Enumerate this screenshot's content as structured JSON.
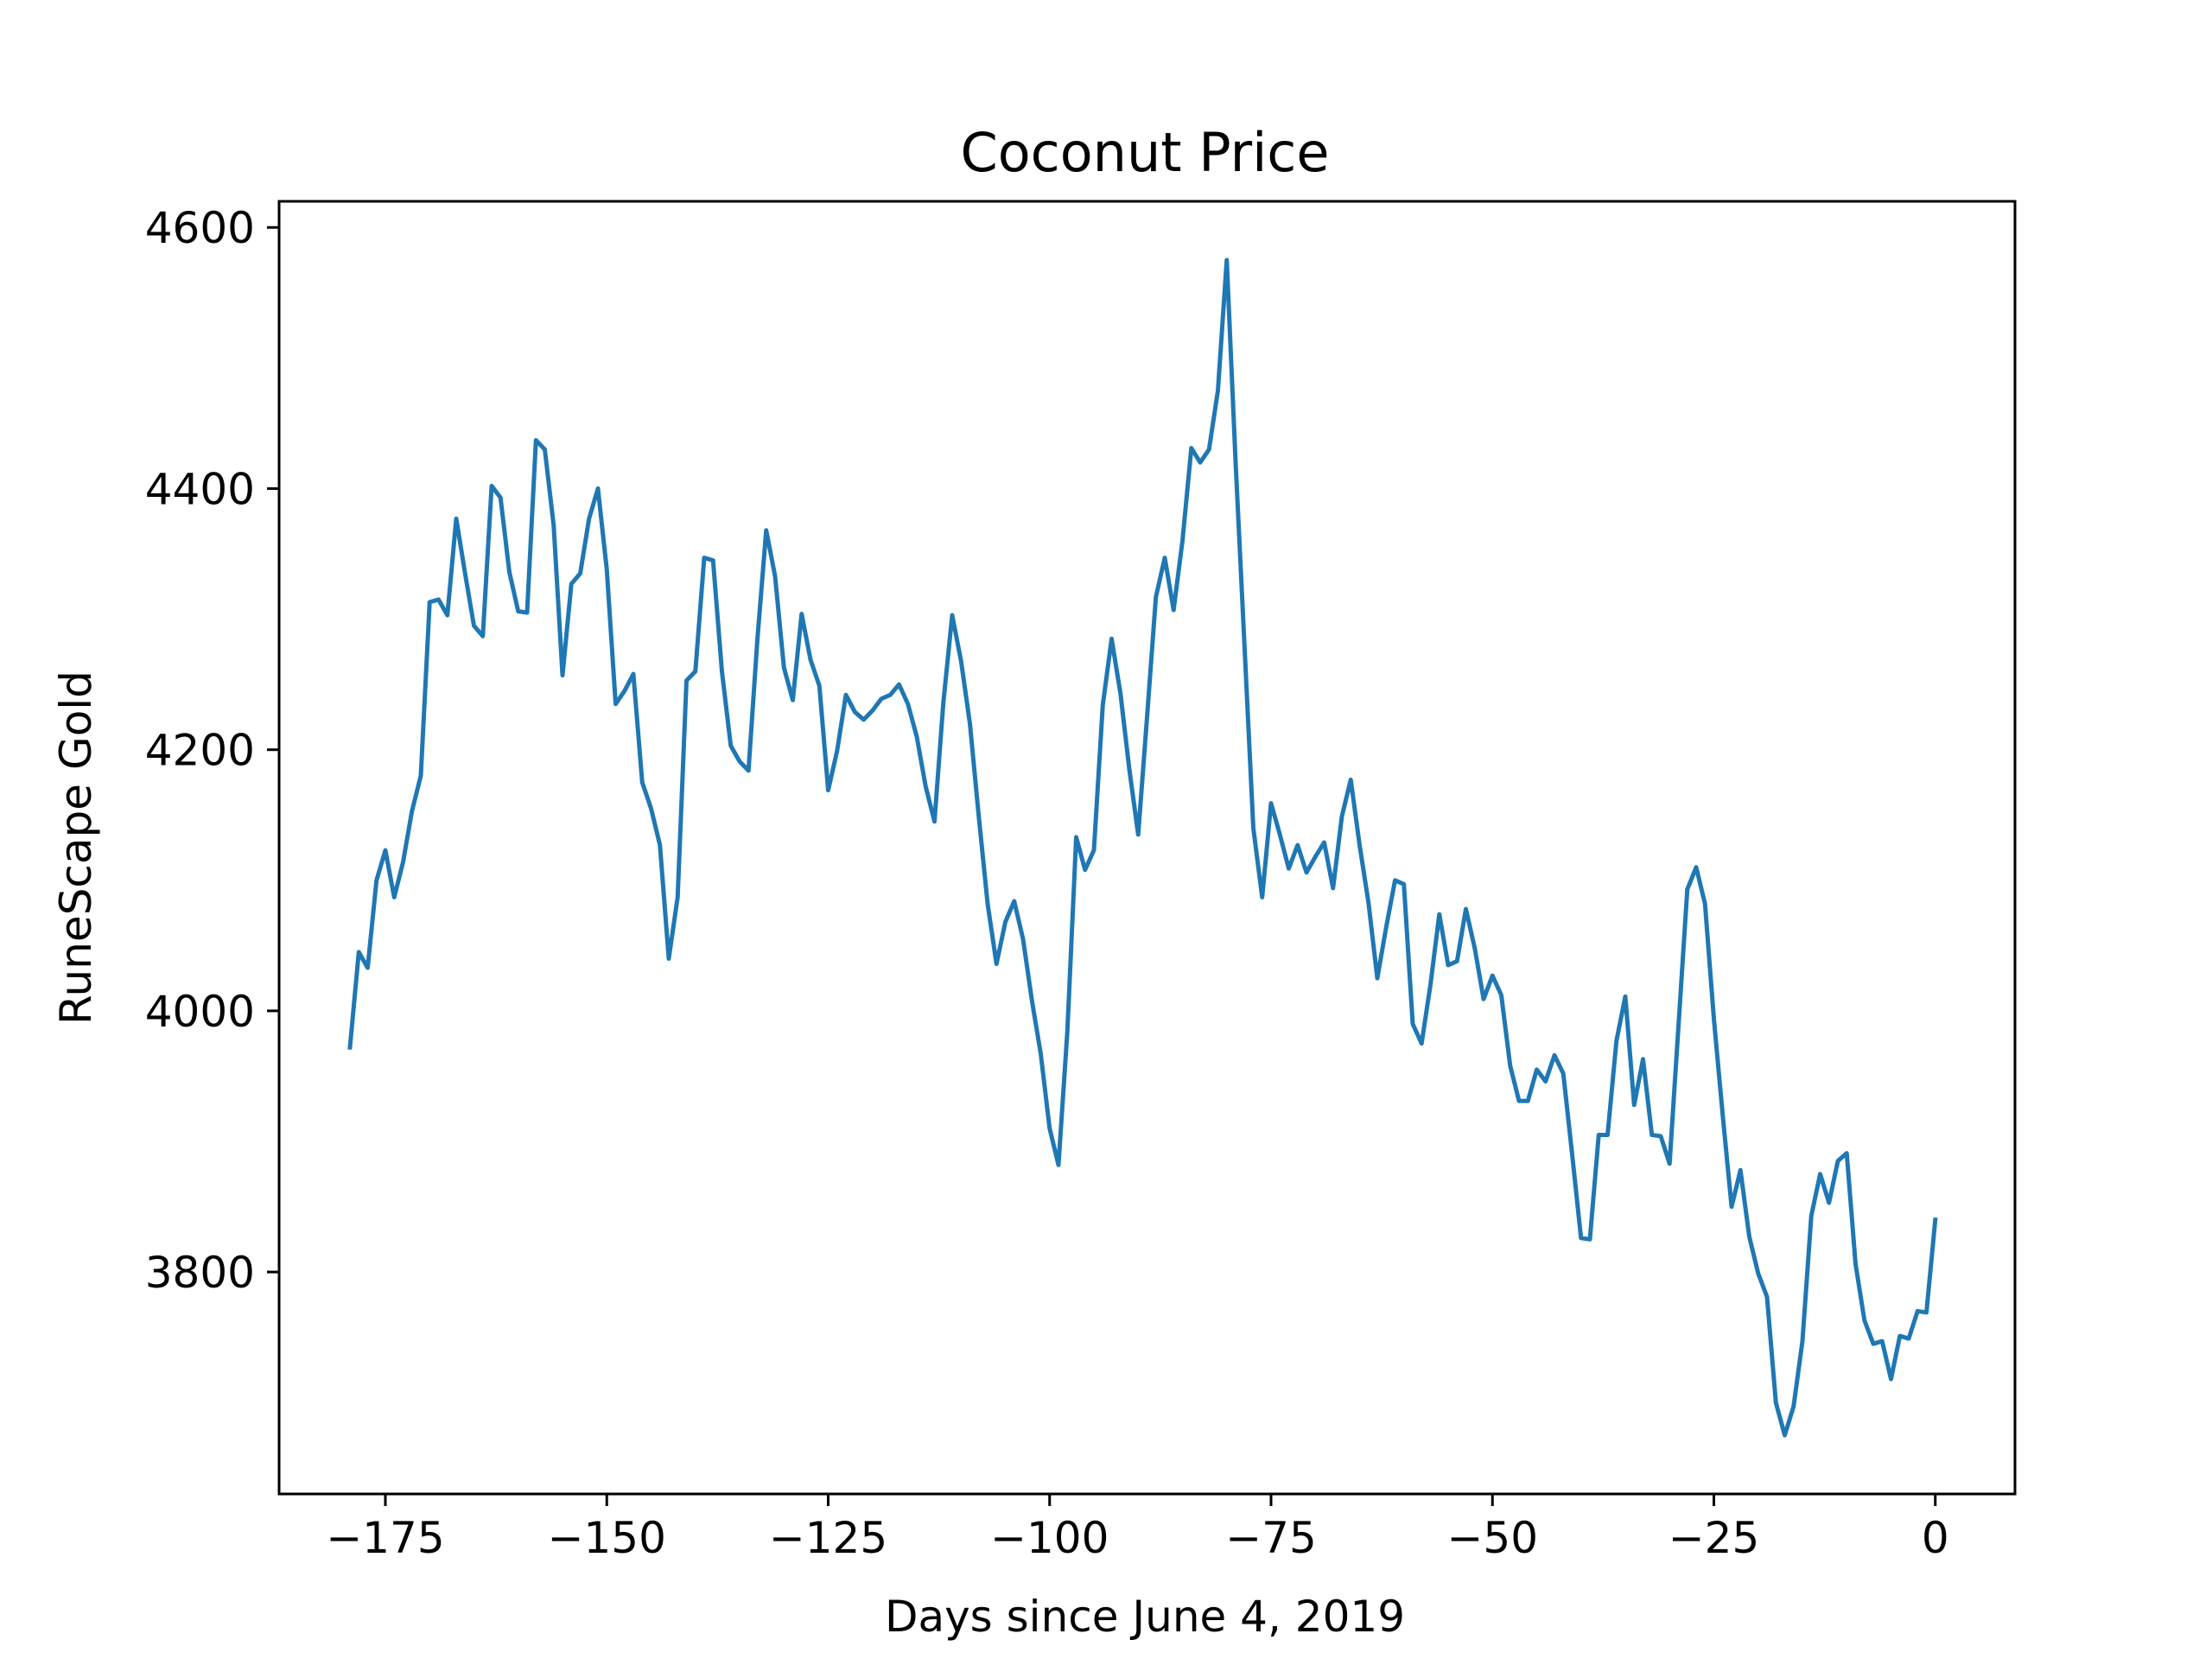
{
  "chart_data": {
    "type": "line",
    "title": "Coconut Price",
    "xlabel": "Days since June 4, 2019",
    "ylabel": "RuneScape Gold",
    "xlim": [
      -187,
      9
    ],
    "ylim": [
      3630,
      4620
    ],
    "xticks": [
      -175,
      -150,
      -125,
      -100,
      -75,
      -50,
      -25,
      0
    ],
    "xtick_labels": [
      "−175",
      "−150",
      "−125",
      "−100",
      "−75",
      "−50",
      "−25",
      "0"
    ],
    "yticks": [
      3800,
      4000,
      4200,
      4400,
      4600
    ],
    "ytick_labels": [
      "3800",
      "4000",
      "4200",
      "4400",
      "4600"
    ],
    "grid": false,
    "legend": null,
    "series": [
      {
        "color": "#1f77b4",
        "x": [
          -179,
          -178,
          -177,
          -176,
          -175,
          -174,
          -173,
          -172,
          -171,
          -170,
          -169,
          -168,
          -167,
          -166,
          -165,
          -164,
          -163,
          -162,
          -161,
          -160,
          -159,
          -158,
          -157,
          -156,
          -155,
          -154,
          -153,
          -152,
          -151,
          -150,
          -149,
          -148,
          -147,
          -146,
          -145,
          -144,
          -143,
          -142,
          -141,
          -140,
          -139,
          -138,
          -137,
          -136,
          -135,
          -134,
          -133,
          -132,
          -131,
          -130,
          -129,
          -128,
          -127,
          -126,
          -125,
          -124,
          -123,
          -122,
          -121,
          -120,
          -119,
          -118,
          -117,
          -116,
          -115,
          -114,
          -113,
          -112,
          -111,
          -110,
          -109,
          -108,
          -107,
          -106,
          -105,
          -104,
          -103,
          -102,
          -101,
          -100,
          -99,
          -98,
          -97,
          -96,
          -95,
          -94,
          -93,
          -92,
          -91,
          -90,
          -89,
          -88,
          -87,
          -86,
          -85,
          -84,
          -83,
          -82,
          -81,
          -80,
          -79,
          -78,
          -77,
          -76,
          -75,
          -74,
          -73,
          -72,
          -71,
          -70,
          -69,
          -68,
          -67,
          -66,
          -65,
          -64,
          -63,
          -62,
          -61,
          -60,
          -59,
          -58,
          -57,
          -56,
          -55,
          -54,
          -53,
          -52,
          -51,
          -50,
          -49,
          -48,
          -47,
          -46,
          -45,
          -44,
          -43,
          -42,
          -41,
          -40,
          -39,
          -38,
          -37,
          -36,
          -35,
          -34,
          -33,
          -32,
          -31,
          -30,
          -29,
          -28,
          -27,
          -26,
          -25,
          -24,
          -23,
          -22,
          -21,
          -20,
          -19,
          -18,
          -17,
          -16,
          -15,
          -14,
          -13,
          -12,
          -11,
          -10,
          -9,
          -8,
          -7,
          -6,
          -5,
          -4,
          -3,
          -2,
          -1,
          0
        ],
        "y": [
          3972,
          4045,
          4033,
          4100,
          4123,
          4087,
          4114,
          4153,
          4180,
          4313,
          4315,
          4303,
          4377,
          4335,
          4295,
          4287,
          4402,
          4393,
          4336,
          4306,
          4305,
          4437,
          4430,
          4372,
          4257,
          4327,
          4335,
          4377,
          4400,
          4338,
          4235,
          4245,
          4258,
          4175,
          4155,
          4127,
          4040,
          4087,
          4253,
          4260,
          4347,
          4345,
          4260,
          4203,
          4191,
          4184,
          4284,
          4368,
          4333,
          4263,
          4238,
          4304,
          4269,
          4249,
          4169,
          4199,
          4242,
          4229,
          4223,
          4230,
          4239,
          4242,
          4250,
          4235,
          4210,
          4172,
          4145,
          4236,
          4303,
          4268,
          4220,
          4149,
          4082,
          4036,
          4068,
          4084,
          4055,
          4008,
          3967,
          3910,
          3882,
          3984,
          4133,
          4108,
          4123,
          4234,
          4285,
          4243,
          4185,
          4135,
          4225,
          4317,
          4347,
          4307,
          4360,
          4431,
          4420,
          4430,
          4475,
          4575,
          4420,
          4280,
          4140,
          4087,
          4159,
          4135,
          4109,
          4127,
          4106,
          4118,
          4129,
          4094,
          4149,
          4177,
          4127,
          4083,
          4025,
          4064,
          4100,
          4097,
          3990,
          3975,
          4020,
          4074,
          4035,
          4038,
          4078,
          4048,
          4009,
          4027,
          4012,
          3958,
          3931,
          3931,
          3955,
          3946,
          3966,
          3952,
          3890,
          3826,
          3825,
          3905,
          3905,
          3977,
          4011,
          3928,
          3963,
          3905,
          3904,
          3883,
          3988,
          4093,
          4110,
          4082,
          3994,
          3920,
          3850,
          3878,
          3827,
          3799,
          3781,
          3700,
          3675,
          3697,
          3747,
          3843,
          3875,
          3853,
          3885,
          3891,
          3806,
          3763,
          3745,
          3747,
          3718,
          3751,
          3749,
          3770,
          3769,
          3840
        ]
      }
    ]
  }
}
